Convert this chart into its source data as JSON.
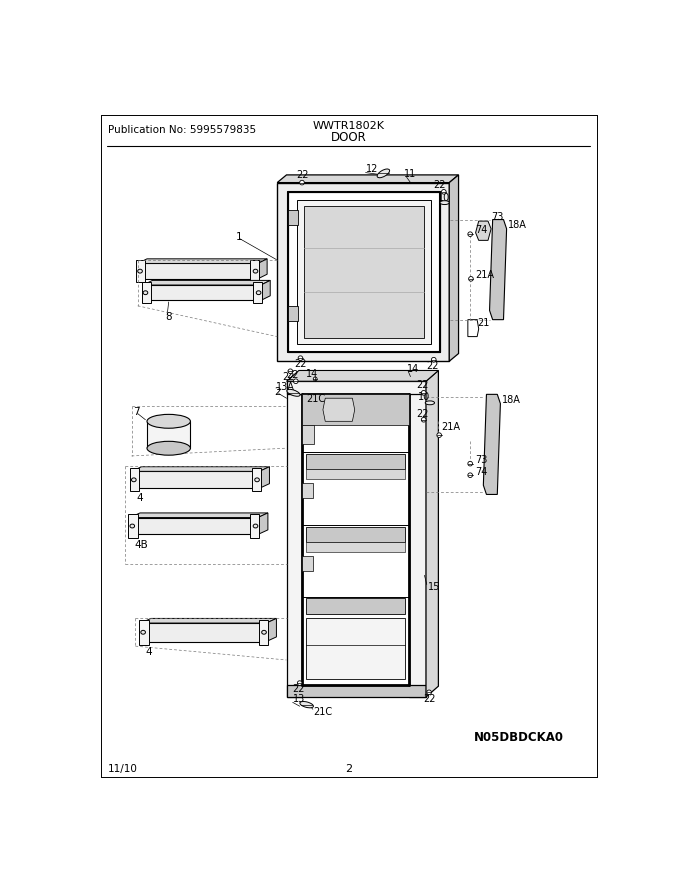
{
  "title": "DOOR",
  "pub_no": "Publication No: 5995579835",
  "model": "WWTR1802K",
  "date": "11/10",
  "page": "2",
  "watermark": "N05DBDCKA0",
  "bg_color": "#ffffff",
  "lc": "#000000",
  "tc": "#000000",
  "gray1": "#e8e8e8",
  "gray2": "#d8d8d8",
  "gray3": "#c8c8c8",
  "gray4": "#f4f4f4",
  "gray5": "#eeeeee"
}
